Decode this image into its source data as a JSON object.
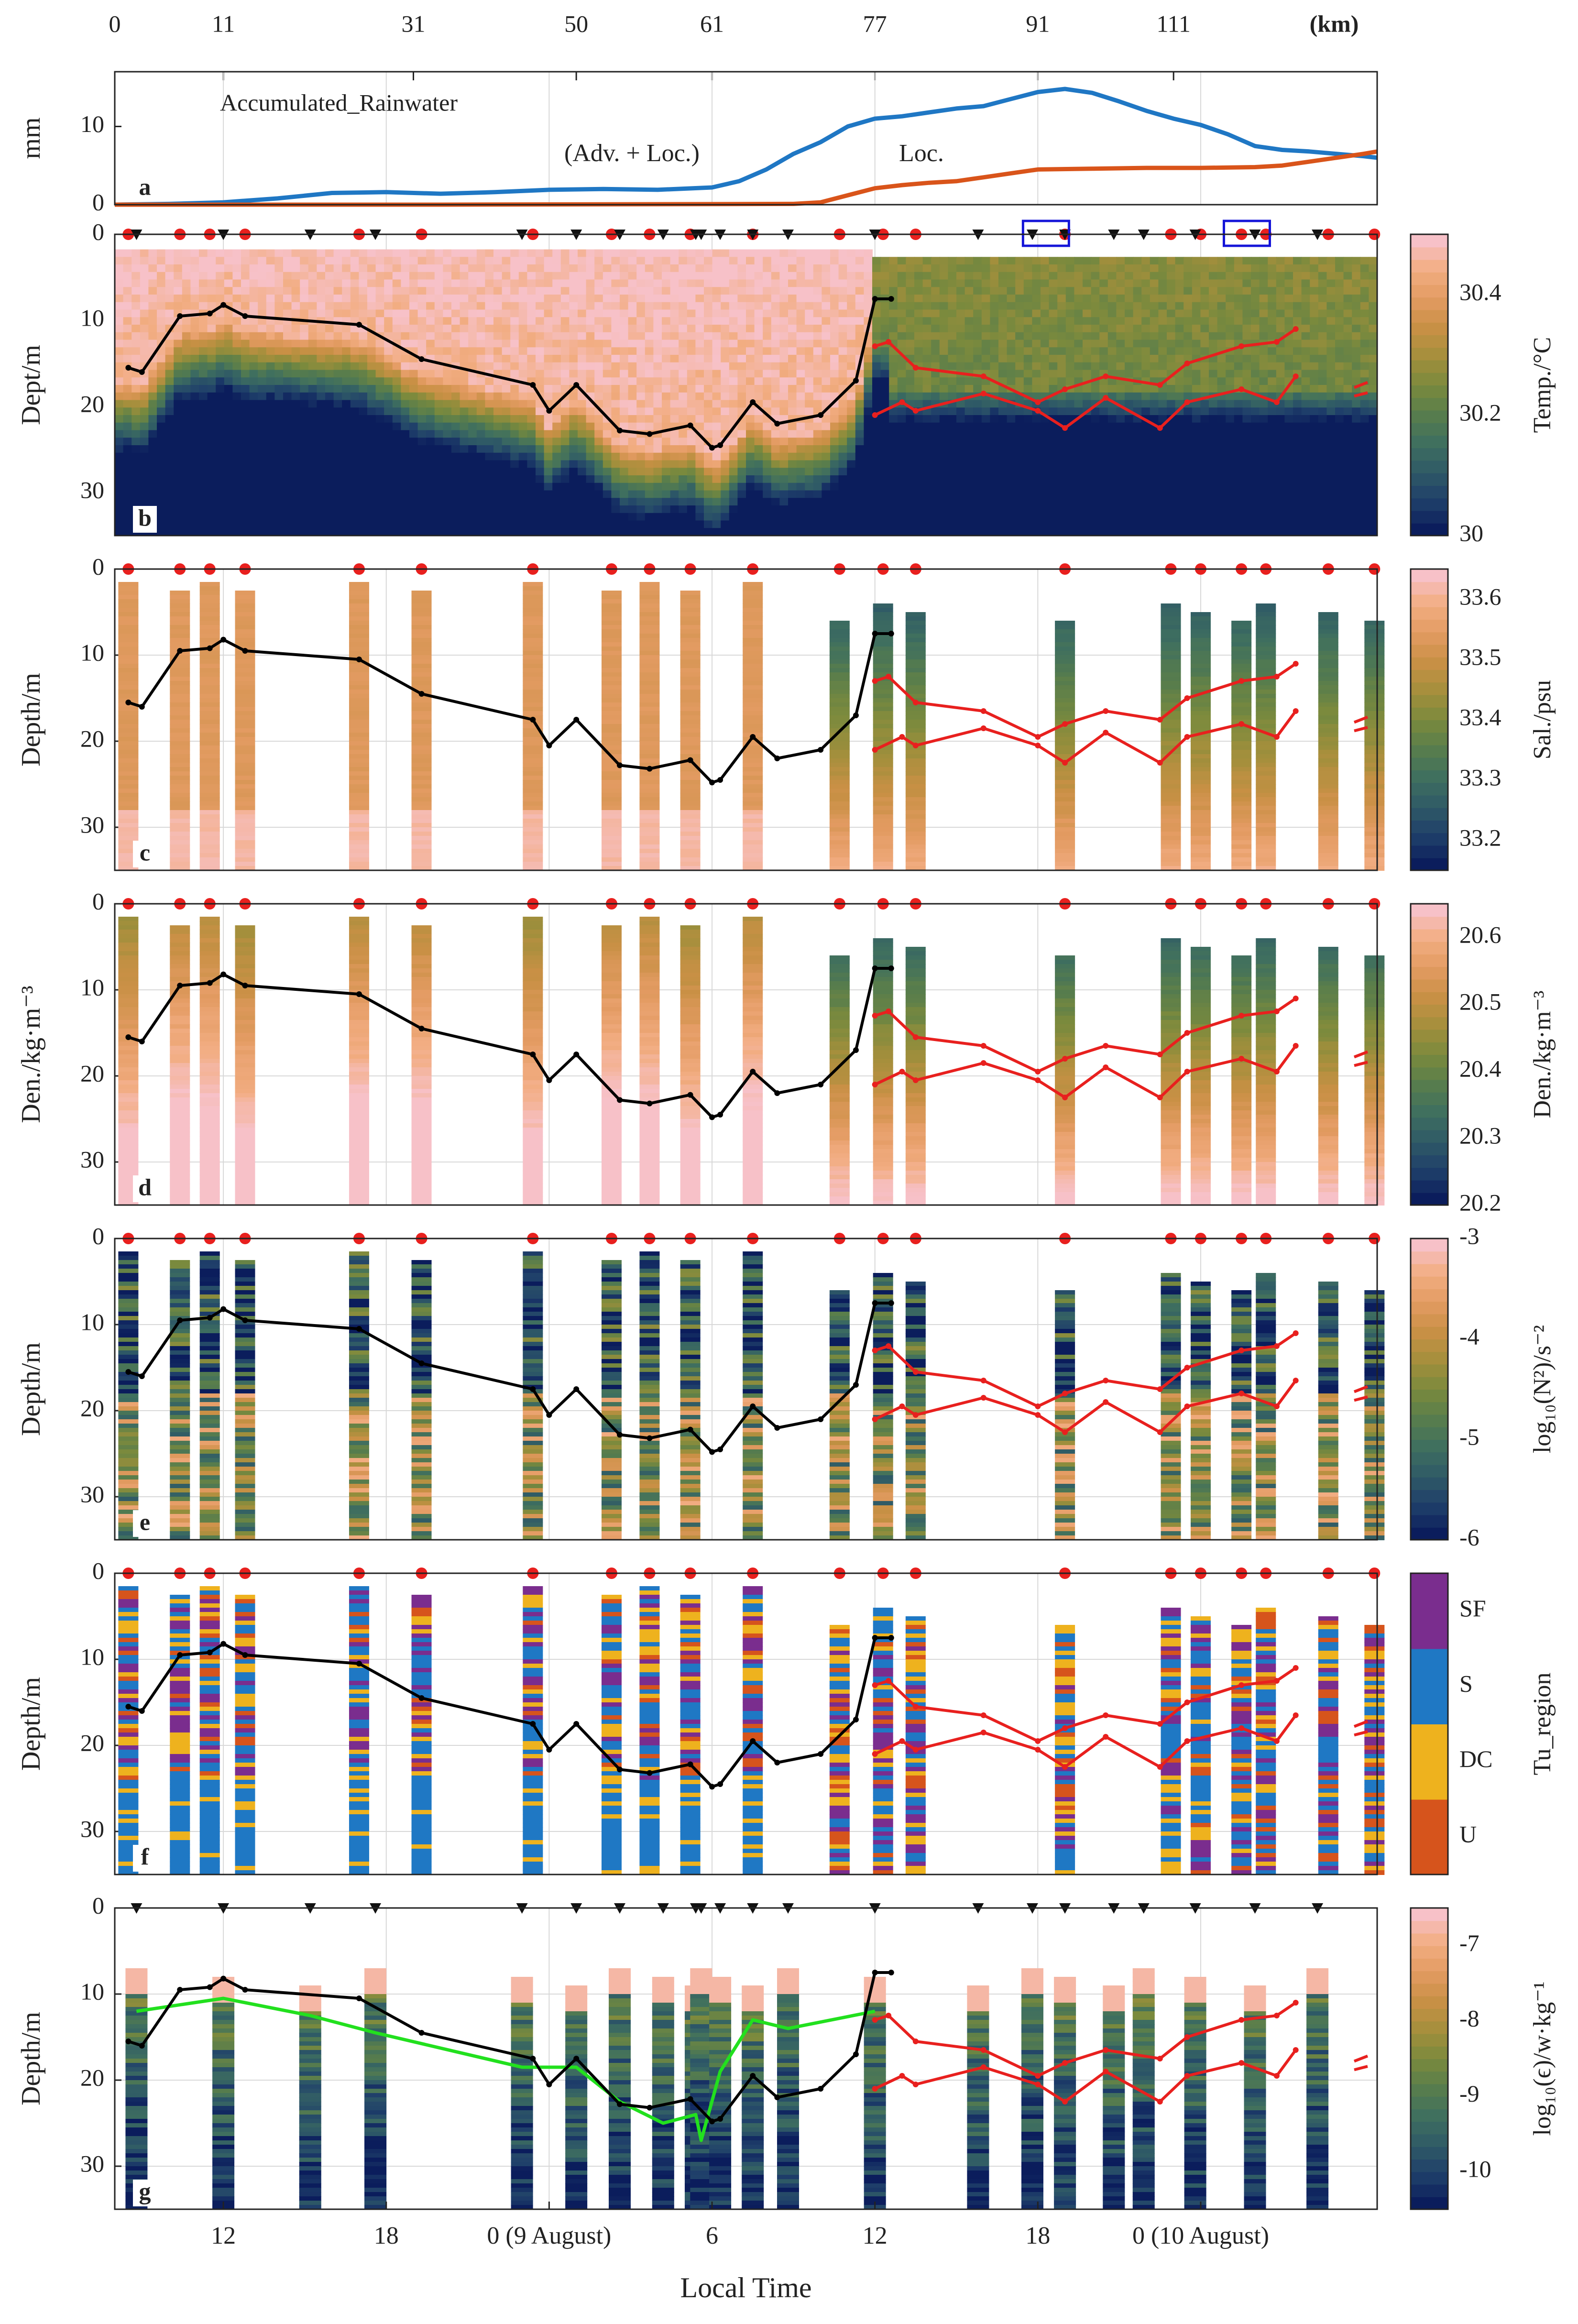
{
  "colors": {
    "adv_loc": "#1f77c4",
    "loc": "#d9541a",
    "mld": "#000000",
    "red_lines": "#e8201e",
    "green_line": "#22e01e",
    "blue_box": "#1414d8",
    "cmap_temp": [
      "#0b1d5c",
      "#1f3f6a",
      "#2f5a66",
      "#3f6f5f",
      "#587d4c",
      "#7b8a3d",
      "#a58f3c",
      "#c99045",
      "#e39b62",
      "#f2ad82",
      "#f7c1c8"
    ],
    "cmap_tu": [
      "#d6541c",
      "#eeb21e",
      "#1f78c4",
      "#7a2d8e"
    ]
  },
  "chart_data": {
    "type": "multi-panel",
    "top_axis": {
      "unit": "(km)",
      "tick_labels": [
        "0",
        "11",
        "31",
        "50",
        "61",
        "77",
        "91",
        "111"
      ],
      "tick_hours": [
        8.0,
        12.0,
        19.0,
        25.0,
        30.0,
        36.0,
        42.0,
        47.0
      ]
    },
    "time_axis": {
      "xlabel": "Local Time",
      "range_hours": [
        8.0,
        54.5
      ],
      "tick_labels": [
        "12",
        "18",
        "0 (9 August)",
        "6",
        "12",
        "18",
        "0 (10 August)"
      ],
      "tick_hours": [
        12,
        18,
        24,
        30,
        36,
        42,
        48
      ]
    },
    "panels": [
      {
        "id": "a",
        "type": "line",
        "title": "Accumulated_Rainwater",
        "ylabel": "mm",
        "ylim": [
          0,
          17
        ],
        "yticks": [
          0,
          10
        ],
        "series": [
          {
            "name": "(Adv. + Loc.)",
            "color_key": "adv_loc",
            "x": [
              8,
              10,
              12,
              14,
              16,
              18,
              20,
              22,
              24,
              26,
              28,
              30,
              31,
              32,
              33,
              34,
              35,
              36,
              37,
              38,
              39,
              40,
              41,
              42,
              43,
              44,
              45,
              46,
              47,
              48,
              49,
              50,
              51,
              52,
              53,
              54,
              54.5
            ],
            "y": [
              0,
              0.1,
              0.3,
              0.8,
              1.5,
              1.6,
              1.4,
              1.6,
              1.9,
              2.0,
              1.9,
              2.2,
              3.0,
              4.5,
              6.5,
              8.0,
              10.0,
              11.0,
              11.3,
              11.8,
              12.3,
              12.6,
              13.5,
              14.4,
              14.8,
              14.3,
              13.2,
              12.0,
              11.0,
              10.2,
              9.0,
              7.5,
              7.0,
              6.8,
              6.5,
              6.2,
              6.0
            ]
          },
          {
            "name": "Loc.",
            "color_key": "loc",
            "x": [
              8,
              20,
              33,
              34,
              35,
              36,
              37,
              38,
              39,
              40,
              41,
              42,
              44,
              46,
              48,
              50,
              51,
              52,
              53,
              54,
              54.5
            ],
            "y": [
              0,
              0,
              0.1,
              0.3,
              1.2,
              2.1,
              2.5,
              2.8,
              3.0,
              3.5,
              4.0,
              4.5,
              4.6,
              4.7,
              4.7,
              4.8,
              5.0,
              5.5,
              6.0,
              6.5,
              6.8
            ]
          }
        ]
      },
      {
        "id": "b",
        "type": "heatmap",
        "ylabel": "Dept/m",
        "colorbar_label": "Temp./°C",
        "colorbar_ticks": [
          "30",
          "30.2",
          "30.4"
        ],
        "colorbar_range": [
          30.0,
          30.5
        ],
        "ylim": [
          0,
          35
        ],
        "yticks": [
          0,
          10,
          20,
          30
        ]
      },
      {
        "id": "c",
        "type": "profile-columns",
        "ylabel": "Depth/m",
        "colorbar_label": "Sal./psu",
        "colorbar_ticks": [
          "33.2",
          "33.3",
          "33.4",
          "33.5",
          "33.6"
        ],
        "colorbar_range": [
          33.15,
          33.65
        ],
        "ylim": [
          0,
          35
        ],
        "yticks": [
          0,
          10,
          20,
          30
        ]
      },
      {
        "id": "d",
        "type": "profile-columns",
        "ylabel": "Den./kg·m⁻³",
        "colorbar_label": "Den./kg·m⁻³",
        "colorbar_ticks": [
          "20.2",
          "20.3",
          "20.4",
          "20.5",
          "20.6"
        ],
        "colorbar_range": [
          20.2,
          20.65
        ],
        "ylim": [
          0,
          35
        ],
        "yticks": [
          0,
          10,
          20,
          30
        ]
      },
      {
        "id": "e",
        "type": "profile-columns",
        "ylabel": "Depth/m",
        "colorbar_label": "log₁₀(N²)/s⁻²",
        "colorbar_ticks": [
          "-6",
          "-5",
          "-4",
          "-3"
        ],
        "colorbar_range": [
          -6,
          -3
        ],
        "ylim": [
          0,
          35
        ],
        "yticks": [
          0,
          10,
          20,
          30
        ]
      },
      {
        "id": "f",
        "type": "profile-columns",
        "ylabel": "Depth/m",
        "colorbar_label": "Tu_region",
        "colorbar_ticks": [
          "U",
          "DC",
          "S",
          "SF"
        ],
        "ylim": [
          0,
          35
        ],
        "yticks": [
          0,
          10,
          20,
          30
        ]
      },
      {
        "id": "g",
        "type": "profile-columns",
        "ylabel": "Depth/m",
        "colorbar_label": "log₁₀(ϵ)/w·kg⁻¹",
        "colorbar_ticks": [
          "-10",
          "-9",
          "-8",
          "-7"
        ],
        "colorbar_range": [
          -10.5,
          -6.5
        ],
        "ylim": [
          0,
          35
        ],
        "yticks": [
          0,
          10,
          20,
          30
        ]
      }
    ],
    "ctd_station_hours": [
      8.5,
      10.4,
      11.5,
      12.8,
      17.0,
      19.3,
      23.4,
      26.3,
      27.7,
      29.2,
      31.5,
      34.7,
      36.3,
      37.5,
      43.0,
      46.9,
      48.0,
      49.5,
      50.4,
      52.7,
      54.4
    ],
    "vmp_station_hours": [
      8.8,
      12.0,
      15.2,
      17.6,
      23.0,
      25.0,
      26.6,
      28.2,
      29.4,
      29.6,
      30.3,
      31.5,
      32.8,
      36.0,
      39.8,
      41.8,
      43.0,
      44.8,
      45.9,
      47.8,
      50.0,
      52.3
    ],
    "mixed_layer_depth": {
      "x": [
        8.5,
        9.0,
        10.4,
        11.5,
        12.0,
        12.8,
        17.0,
        19.3,
        23.4,
        24.0,
        25.0,
        26.6,
        27.7,
        29.2,
        30.0,
        30.3,
        31.5,
        32.4,
        34.0,
        35.3,
        36.0,
        36.6
      ],
      "y": [
        15.5,
        16,
        9.5,
        9.2,
        8.2,
        9.5,
        10.5,
        14.5,
        17.5,
        20.5,
        17.5,
        22.8,
        23.2,
        22.2,
        24.8,
        24.5,
        19.5,
        22,
        21,
        17,
        7.5,
        7.5
      ]
    },
    "red_upper": {
      "x": [
        36.0,
        36.5,
        37.5,
        40.0,
        42.0,
        43.0,
        44.5,
        46.5,
        47.5,
        49.5,
        50.8,
        51.5
      ],
      "y": [
        13,
        12.5,
        15.5,
        16.5,
        19.5,
        18,
        16.5,
        17.5,
        15,
        13,
        12.5,
        11
      ]
    },
    "red_lower": {
      "x": [
        36.0,
        37.0,
        37.5,
        40.0,
        42.0,
        43.0,
        44.5,
        46.5,
        47.5,
        49.5,
        50.8,
        51.5
      ],
      "y": [
        21,
        19.5,
        20.5,
        18.5,
        20.5,
        22.5,
        19,
        22.5,
        19.5,
        18,
        19.5,
        16.5
      ]
    },
    "green_line_g": {
      "x": [
        8.8,
        12.0,
        15.2,
        17.6,
        23.0,
        25.0,
        26.6,
        28.2,
        29.4,
        29.6,
        30.3,
        31.5,
        32.8,
        36.0
      ],
      "y": [
        12,
        10.5,
        12.5,
        14.5,
        18.5,
        18.5,
        22.5,
        25,
        24,
        27,
        19,
        13,
        14,
        12
      ]
    },
    "blue_box_hours": [
      42.3,
      49.7
    ]
  }
}
